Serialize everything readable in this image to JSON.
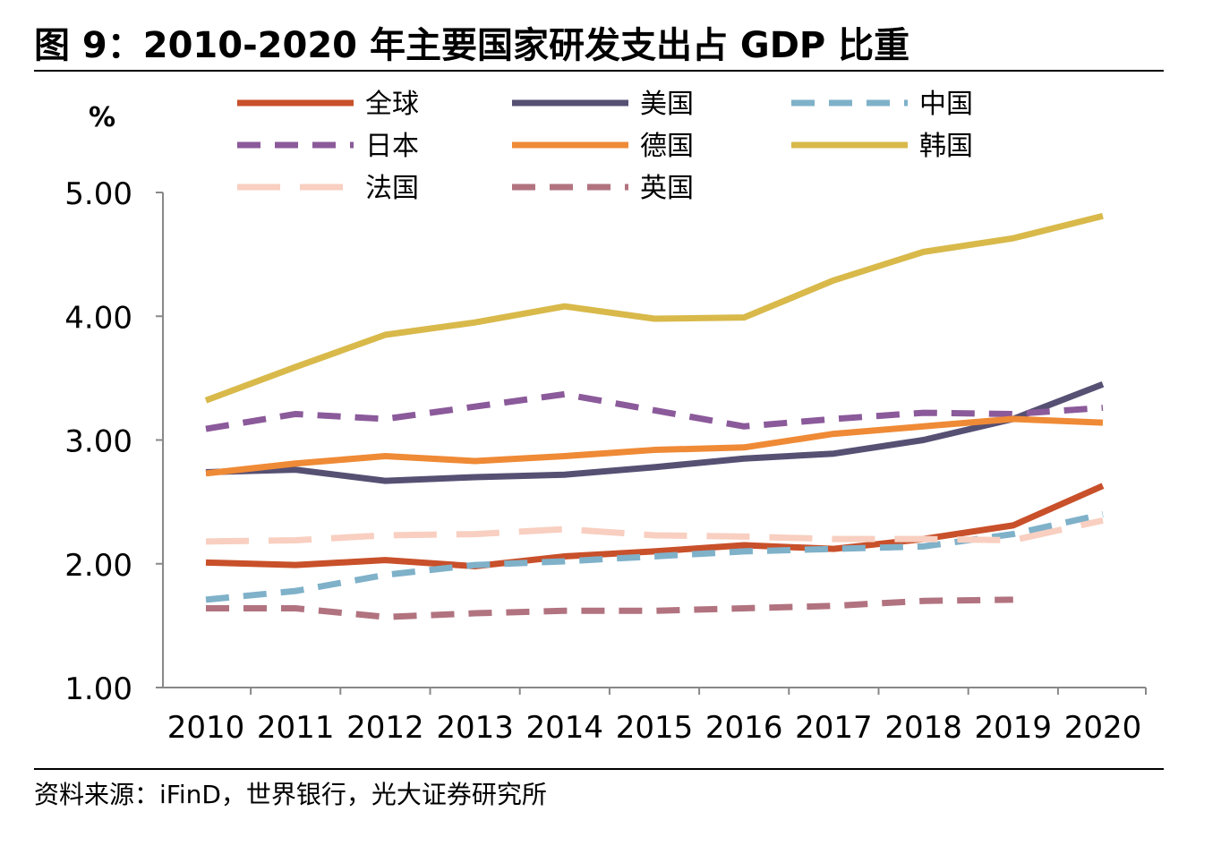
{
  "figure": {
    "title": "图 9：2010-2020 年主要国家研发支出占 GDP 比重",
    "source": "资料来源：iFinD，世界银行，光大证券研究所"
  },
  "chart_data": {
    "type": "line",
    "ylabel": "%",
    "ylim": [
      1.0,
      5.0
    ],
    "yticks": [
      "1.00",
      "2.00",
      "3.00",
      "4.00",
      "5.00"
    ],
    "x": [
      "2010",
      "2011",
      "2012",
      "2013",
      "2014",
      "2015",
      "2016",
      "2017",
      "2018",
      "2019",
      "2020"
    ],
    "legend_position": "top",
    "series": [
      {
        "name": "全球",
        "color": "#c8502a",
        "dash": "solid",
        "values": [
          2.01,
          1.99,
          2.03,
          1.98,
          2.06,
          2.1,
          2.15,
          2.12,
          2.2,
          2.31,
          2.63
        ]
      },
      {
        "name": "美国",
        "color": "#565073",
        "dash": "solid",
        "values": [
          2.74,
          2.76,
          2.67,
          2.7,
          2.72,
          2.78,
          2.85,
          2.89,
          3.0,
          3.17,
          3.45
        ]
      },
      {
        "name": "中国",
        "color": "#7fb1c9",
        "dash": "dash",
        "values": [
          1.71,
          1.78,
          1.91,
          1.99,
          2.02,
          2.06,
          2.1,
          2.12,
          2.14,
          2.24,
          2.4
        ]
      },
      {
        "name": "日本",
        "color": "#8b5a9a",
        "dash": "dash",
        "values": [
          3.09,
          3.21,
          3.17,
          3.27,
          3.37,
          3.24,
          3.11,
          3.17,
          3.22,
          3.21,
          3.26
        ]
      },
      {
        "name": "德国",
        "color": "#ef8a36",
        "dash": "solid",
        "values": [
          2.73,
          2.81,
          2.87,
          2.83,
          2.87,
          2.92,
          2.94,
          3.05,
          3.11,
          3.17,
          3.14
        ]
      },
      {
        "name": "韩国",
        "color": "#d8b94a",
        "dash": "solid",
        "values": [
          3.32,
          3.59,
          3.85,
          3.95,
          4.08,
          3.98,
          3.99,
          4.29,
          4.52,
          4.63,
          4.81
        ]
      },
      {
        "name": "法国",
        "color": "#f8cfc0",
        "dash": "longdash",
        "values": [
          2.18,
          2.19,
          2.23,
          2.24,
          2.28,
          2.23,
          2.22,
          2.2,
          2.2,
          2.19,
          2.35
        ]
      },
      {
        "name": "英国",
        "color": "#b1737f",
        "dash": "dash",
        "values": [
          1.64,
          1.64,
          1.57,
          1.6,
          1.62,
          1.62,
          1.64,
          1.66,
          1.7,
          1.71,
          null
        ]
      }
    ]
  }
}
